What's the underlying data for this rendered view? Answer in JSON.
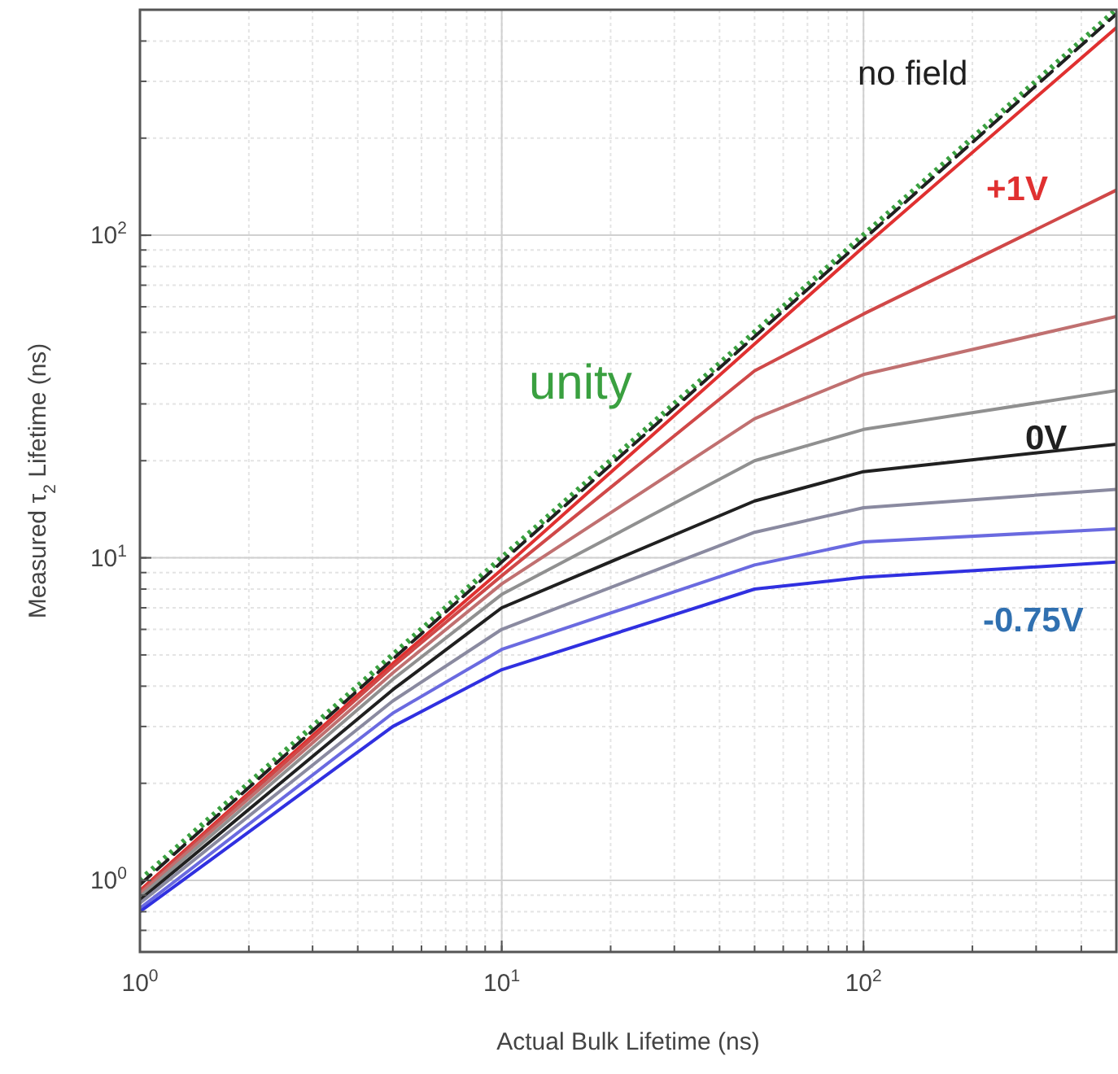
{
  "chart_data": {
    "type": "line",
    "xlabel": "Actual Bulk Lifetime (ns)",
    "ylabel": "Measured τ$_{2}$ Lifetime (ns)",
    "log": "xy",
    "grid": true,
    "marker": "none",
    "xlim": [
      1,
      500
    ],
    "ylim": [
      0.6,
      500
    ],
    "xticks": [
      {
        "value": 1,
        "label": "10$^{0}$"
      },
      {
        "value": 10,
        "label": "10$^{1}$"
      },
      {
        "value": 100,
        "label": "10$^{2}$"
      }
    ],
    "yticks": [
      {
        "value": 1,
        "label": "10$^{0}$"
      },
      {
        "value": 10,
        "label": "10$^{1}$"
      },
      {
        "value": 100,
        "label": "10$^{2}$"
      }
    ],
    "x": [
      1,
      5,
      10,
      50,
      100,
      500
    ],
    "series": [
      {
        "name": "unity",
        "color": "#3aa040",
        "line_style": "dotted",
        "values": [
          1,
          5,
          10,
          50,
          100,
          500
        ]
      },
      {
        "name": "no field",
        "color": "#202020",
        "line_style": "dashed",
        "values": [
          0.97,
          4.85,
          9.7,
          48.5,
          97,
          485
        ]
      },
      {
        "name": "+1V",
        "color": "#e03030",
        "values": [
          0.93,
          4.7,
          9.2,
          46,
          92,
          440
        ]
      },
      {
        "color": "#d04848",
        "values": [
          0.92,
          4.6,
          8.8,
          38,
          57,
          138
        ]
      },
      {
        "color": "#c07070",
        "values": [
          0.91,
          4.4,
          8.3,
          27,
          37,
          56
        ]
      },
      {
        "color": "#909090",
        "values": [
          0.89,
          4.2,
          7.7,
          20,
          25,
          33
        ]
      },
      {
        "name": "0V",
        "color": "#202020",
        "values": [
          0.87,
          3.9,
          7,
          15,
          18.5,
          22.5
        ]
      },
      {
        "color": "#8a8aa0",
        "values": [
          0.85,
          3.6,
          6,
          12,
          14.3,
          16.3
        ]
      },
      {
        "color": "#6a6ae0",
        "values": [
          0.82,
          3.3,
          5.2,
          9.5,
          11.2,
          12.3
        ]
      },
      {
        "name": "-0.75V",
        "color": "#3030e0",
        "values": [
          0.8,
          3,
          4.5,
          8,
          8.7,
          9.7
        ]
      }
    ]
  }
}
